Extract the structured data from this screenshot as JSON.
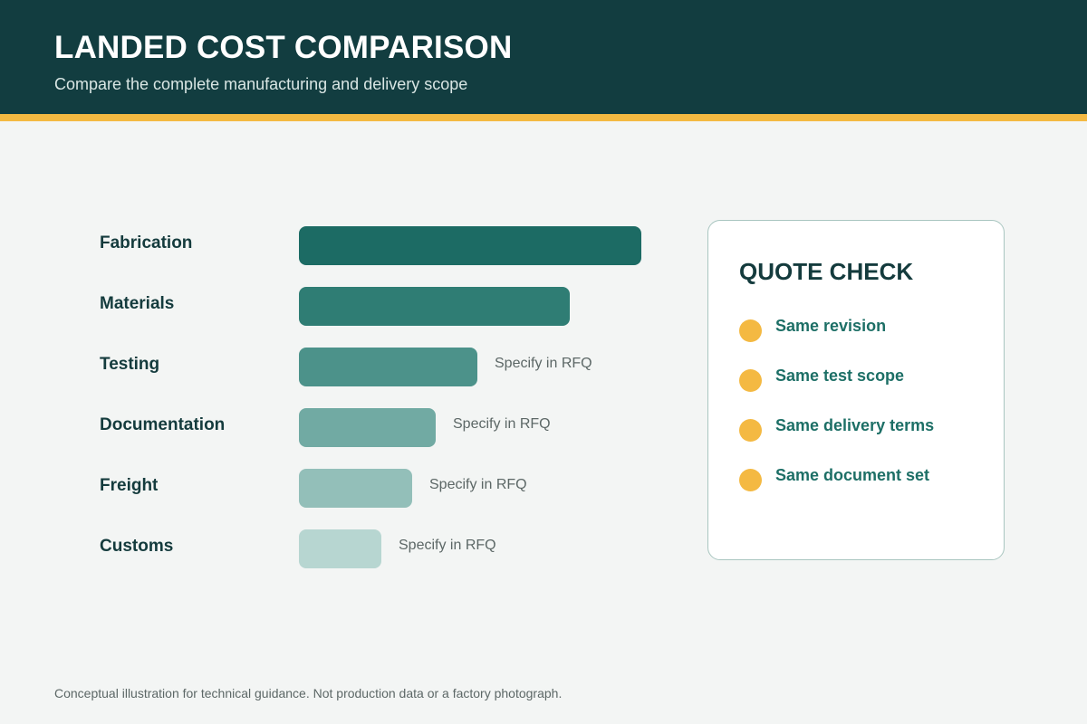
{
  "header": {
    "title": "LANDED COST COMPARISON",
    "subtitle": "Compare the complete manufacturing and delivery scope"
  },
  "chart_data": {
    "type": "bar",
    "orientation": "horizontal",
    "categories": [
      "Fabrication",
      "Materials",
      "Testing",
      "Documentation",
      "Freight",
      "Customs"
    ],
    "values": [
      100,
      79,
      52,
      40,
      33,
      24
    ],
    "bar_colors": [
      "#1c6b64",
      "#2f7d74",
      "#4c928a",
      "#71aaa3",
      "#93bfb9",
      "#b7d6d1"
    ],
    "annotations": [
      "",
      "",
      "Specify in RFQ",
      "Specify in RFQ",
      "Specify in RFQ",
      "Specify in RFQ"
    ]
  },
  "quote_check": {
    "title": "QUOTE CHECK",
    "items": [
      "Same revision",
      "Same test scope",
      "Same delivery terms",
      "Same document set"
    ],
    "dot_color": "#f4b942"
  },
  "footnote": "Conceptual illustration for technical guidance. Not production data or a factory photograph."
}
